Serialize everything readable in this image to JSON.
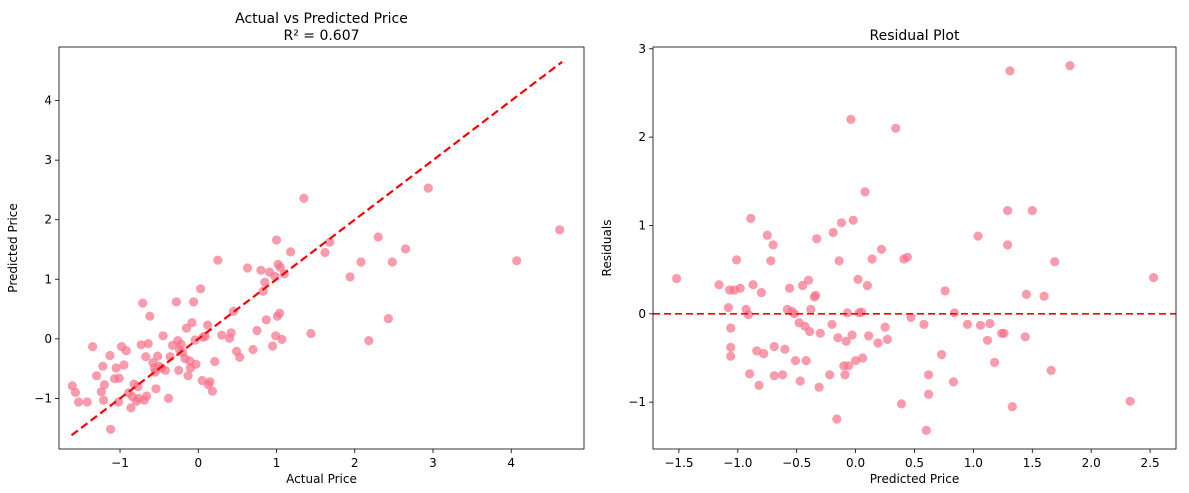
{
  "chart_data": [
    {
      "type": "scatter",
      "title_lines": [
        "Actual vs Predicted Price",
        "R² = 0.607"
      ],
      "xlabel": "Actual Price",
      "ylabel": "Predicted Price",
      "xlim": [
        -1.78,
        4.93
      ],
      "ylim": [
        -1.85,
        4.9
      ],
      "xticks": [
        -1,
        0,
        1,
        2,
        3,
        4
      ],
      "yticks": [
        -1,
        0,
        1,
        2,
        3,
        4
      ],
      "grid": false,
      "marker_color": "#f77189",
      "line_color": "#ff0000",
      "reference_line": {
        "style": "dashed",
        "from": [
          -1.62,
          -1.62
        ],
        "to": [
          4.65,
          4.65
        ]
      },
      "points": [
        [
          -1.61,
          -0.79
        ],
        [
          -1.57,
          -0.9
        ],
        [
          -1.53,
          -1.06
        ],
        [
          -1.42,
          -1.06
        ],
        [
          -1.35,
          -0.13
        ],
        [
          -1.3,
          -0.62
        ],
        [
          -1.24,
          -0.89
        ],
        [
          -1.22,
          -0.46
        ],
        [
          -1.21,
          -1.03
        ],
        [
          -1.2,
          -0.77
        ],
        [
          -1.13,
          -0.28
        ],
        [
          -1.12,
          -1.52
        ],
        [
          -1.07,
          -0.67
        ],
        [
          -1.05,
          -0.49
        ],
        [
          -1.02,
          -1.06
        ],
        [
          -1.01,
          -0.66
        ],
        [
          -0.98,
          -0.13
        ],
        [
          -0.95,
          -0.44
        ],
        [
          -0.92,
          -0.2
        ],
        [
          -0.89,
          -0.91
        ],
        [
          -0.86,
          -1.16
        ],
        [
          -0.84,
          -0.97
        ],
        [
          -0.82,
          -0.76
        ],
        [
          -0.79,
          -1.05
        ],
        [
          -0.77,
          -0.8
        ],
        [
          -0.76,
          -1.0
        ],
        [
          -0.73,
          -0.1
        ],
        [
          -0.71,
          0.6
        ],
        [
          -0.69,
          -1.03
        ],
        [
          -0.67,
          -0.3
        ],
        [
          -0.66,
          -0.96
        ],
        [
          -0.64,
          -0.08
        ],
        [
          -0.62,
          0.38
        ],
        [
          -0.58,
          -0.4
        ],
        [
          -0.56,
          -0.49
        ],
        [
          -0.55,
          -0.56
        ],
        [
          -0.54,
          -0.84
        ],
        [
          -0.52,
          -0.29
        ],
        [
          -0.5,
          -0.46
        ],
        [
          -0.47,
          -0.49
        ],
        [
          -0.45,
          0.05
        ],
        [
          -0.42,
          -0.53
        ],
        [
          -0.38,
          -1.0
        ],
        [
          -0.36,
          -0.3
        ],
        [
          -0.33,
          -0.11
        ],
        [
          -0.28,
          0.62
        ],
        [
          -0.26,
          -0.03
        ],
        [
          -0.25,
          -0.53
        ],
        [
          -0.24,
          -0.18
        ],
        [
          -0.22,
          -0.09
        ],
        [
          -0.2,
          -0.23
        ],
        [
          -0.17,
          -0.33
        ],
        [
          -0.15,
          0.18
        ],
        [
          -0.13,
          -0.62
        ],
        [
          -0.11,
          -0.37
        ],
        [
          -0.1,
          -0.49
        ],
        [
          -0.08,
          0.27
        ],
        [
          -0.06,
          0.62
        ],
        [
          -0.04,
          -0.02
        ],
        [
          -0.03,
          -0.43
        ],
        [
          0.03,
          0.84
        ],
        [
          0.05,
          -0.7
        ],
        [
          0.06,
          0.03
        ],
        [
          0.09,
          0.04
        ],
        [
          0.12,
          0.23
        ],
        [
          0.13,
          -0.77
        ],
        [
          0.15,
          -0.72
        ],
        [
          0.18,
          -0.88
        ],
        [
          0.21,
          -0.38
        ],
        [
          0.25,
          1.32
        ],
        [
          0.3,
          0.06
        ],
        [
          0.4,
          0.01
        ],
        [
          0.42,
          0.1
        ],
        [
          0.45,
          0.46
        ],
        [
          0.49,
          -0.21
        ],
        [
          0.53,
          -0.31
        ],
        [
          0.63,
          1.19
        ],
        [
          0.7,
          -0.18
        ],
        [
          0.75,
          0.14
        ],
        [
          0.8,
          1.15
        ],
        [
          0.83,
          0.8
        ],
        [
          0.85,
          0.95
        ],
        [
          0.87,
          0.32
        ],
        [
          0.91,
          1.12
        ],
        [
          0.95,
          -0.12
        ],
        [
          0.98,
          1.05
        ],
        [
          0.99,
          0.05
        ],
        [
          1.0,
          1.66
        ],
        [
          1.01,
          0.38
        ],
        [
          1.02,
          1.25
        ],
        [
          1.04,
          0.43
        ],
        [
          1.05,
          1.2
        ],
        [
          1.07,
          -0.01
        ],
        [
          1.1,
          1.09
        ],
        [
          1.18,
          1.46
        ],
        [
          1.35,
          2.36
        ],
        [
          1.44,
          0.09
        ],
        [
          1.62,
          1.45
        ],
        [
          1.68,
          1.62
        ],
        [
          1.94,
          1.04
        ],
        [
          2.08,
          1.29
        ],
        [
          2.18,
          -0.03
        ],
        [
          2.3,
          1.71
        ],
        [
          2.43,
          0.34
        ],
        [
          2.48,
          1.29
        ],
        [
          2.65,
          1.51
        ],
        [
          2.94,
          2.53
        ],
        [
          4.07,
          1.31
        ],
        [
          4.62,
          1.83
        ]
      ]
    },
    {
      "type": "scatter",
      "title_lines": [
        "Residual Plot"
      ],
      "xlabel": "Predicted Price",
      "ylabel": "Residuals",
      "xlim": [
        -1.72,
        2.72
      ],
      "ylim": [
        -1.53,
        3.02
      ],
      "xticks": [
        -1.5,
        -1.0,
        -0.5,
        0.0,
        0.5,
        1.0,
        1.5,
        2.0,
        2.5
      ],
      "xtick_labels": [
        "−1.5",
        "−1.0",
        "−0.5",
        "0.0",
        "0.5",
        "1.0",
        "1.5",
        "2.0",
        "2.5"
      ],
      "yticks": [
        -1,
        0,
        1,
        2,
        3
      ],
      "grid": false,
      "marker_color": "#f77189",
      "line_color": "#ff0000",
      "reference_line": {
        "style": "dashed",
        "y": 0
      },
      "points": [
        [
          -1.52,
          0.4
        ],
        [
          -1.16,
          0.33
        ],
        [
          -1.08,
          0.07
        ],
        [
          -1.07,
          0.27
        ],
        [
          -1.06,
          -0.16
        ],
        [
          -1.06,
          -0.38
        ],
        [
          -1.06,
          -0.48
        ],
        [
          -1.03,
          0.27
        ],
        [
          -1.01,
          0.61
        ],
        [
          -0.98,
          0.29
        ],
        [
          -0.93,
          0.05
        ],
        [
          -0.91,
          -0.01
        ],
        [
          -0.9,
          -0.68
        ],
        [
          -0.89,
          1.08
        ],
        [
          -0.87,
          0.33
        ],
        [
          -0.84,
          -0.42
        ],
        [
          -0.82,
          -0.81
        ],
        [
          -0.8,
          0.24
        ],
        [
          -0.78,
          -0.45
        ],
        [
          -0.75,
          0.89
        ],
        [
          -0.72,
          0.6
        ],
        [
          -0.7,
          0.78
        ],
        [
          -0.69,
          -0.37
        ],
        [
          -0.69,
          -0.7
        ],
        [
          -0.62,
          -0.69
        ],
        [
          -0.6,
          -0.4
        ],
        [
          -0.58,
          0.05
        ],
        [
          -0.56,
          0.29
        ],
        [
          -0.54,
          0.03
        ],
        [
          -0.52,
          0.0
        ],
        [
          -0.51,
          -0.53
        ],
        [
          -0.48,
          -0.1
        ],
        [
          -0.47,
          -0.76
        ],
        [
          -0.45,
          0.32
        ],
        [
          -0.43,
          -0.14
        ],
        [
          -0.42,
          -0.53
        ],
        [
          -0.4,
          0.38
        ],
        [
          -0.39,
          -0.2
        ],
        [
          -0.38,
          0.05
        ],
        [
          -0.35,
          0.19
        ],
        [
          -0.34,
          0.21
        ],
        [
          -0.33,
          0.85
        ],
        [
          -0.31,
          -0.83
        ],
        [
          -0.3,
          -0.22
        ],
        [
          -0.22,
          -0.69
        ],
        [
          -0.2,
          -0.12
        ],
        [
          -0.19,
          0.92
        ],
        [
          -0.16,
          -1.19
        ],
        [
          -0.15,
          -0.27
        ],
        [
          -0.14,
          0.6
        ],
        [
          -0.12,
          1.03
        ],
        [
          -0.1,
          -0.59
        ],
        [
          -0.09,
          -0.69
        ],
        [
          -0.08,
          -0.31
        ],
        [
          -0.07,
          0.01
        ],
        [
          -0.06,
          -0.59
        ],
        [
          -0.04,
          2.2
        ],
        [
          -0.03,
          -0.24
        ],
        [
          -0.02,
          1.06
        ],
        [
          0.0,
          -0.53
        ],
        [
          0.02,
          0.39
        ],
        [
          0.03,
          0.01
        ],
        [
          0.05,
          0.02
        ],
        [
          0.06,
          -0.5
        ],
        [
          0.08,
          1.38
        ],
        [
          0.1,
          0.32
        ],
        [
          0.11,
          -0.25
        ],
        [
          0.14,
          0.62
        ],
        [
          0.19,
          -0.33
        ],
        [
          0.22,
          0.73
        ],
        [
          0.25,
          -0.15
        ],
        [
          0.27,
          -0.29
        ],
        [
          0.34,
          2.1
        ],
        [
          0.39,
          -1.02
        ],
        [
          0.41,
          0.62
        ],
        [
          0.44,
          0.64
        ],
        [
          0.47,
          -0.04
        ],
        [
          0.58,
          -0.12
        ],
        [
          0.6,
          -1.32
        ],
        [
          0.62,
          -0.69
        ],
        [
          0.62,
          -0.91
        ],
        [
          0.73,
          -0.46
        ],
        [
          0.76,
          0.26
        ],
        [
          0.83,
          -0.77
        ],
        [
          0.84,
          0.01
        ],
        [
          0.95,
          -0.12
        ],
        [
          1.04,
          0.88
        ],
        [
          1.06,
          -0.13
        ],
        [
          1.12,
          -0.3
        ],
        [
          1.14,
          -0.11
        ],
        [
          1.18,
          -0.55
        ],
        [
          1.24,
          -0.22
        ],
        [
          1.26,
          -0.22
        ],
        [
          1.29,
          0.78
        ],
        [
          1.29,
          1.17
        ],
        [
          1.31,
          2.75
        ],
        [
          1.33,
          -1.05
        ],
        [
          1.44,
          -0.26
        ],
        [
          1.45,
          0.22
        ],
        [
          1.5,
          1.17
        ],
        [
          1.6,
          0.2
        ],
        [
          1.66,
          -0.64
        ],
        [
          1.69,
          0.59
        ],
        [
          1.82,
          2.81
        ],
        [
          2.33,
          -0.99
        ],
        [
          2.53,
          0.41
        ]
      ]
    }
  ]
}
